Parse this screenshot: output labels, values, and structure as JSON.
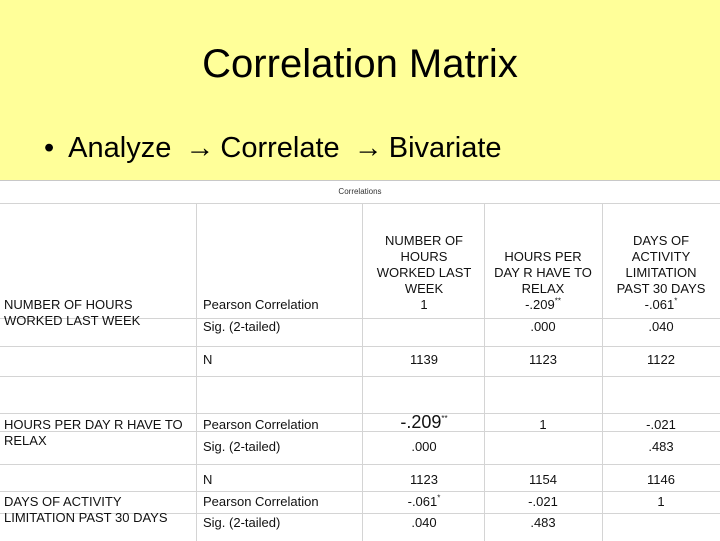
{
  "slide": {
    "title": "Correlation Matrix",
    "bullet": {
      "steps": [
        "Analyze",
        "Correlate",
        "Bivariate"
      ]
    }
  },
  "table": {
    "caption": "Correlations",
    "columns": [
      {
        "line1": "NUMBER OF",
        "line2": "HOURS",
        "line3": "WORKED LAST",
        "line4": "WEEK"
      },
      {
        "line1": "HOURS PER",
        "line2": "DAY R HAVE TO",
        "line3": "RELAX"
      },
      {
        "line1": "DAYS OF",
        "line2": "ACTIVITY",
        "line3": "LIMITATION",
        "line4": "PAST 30 DAYS"
      }
    ],
    "rows": [
      {
        "label": "NUMBER OF HOURS WORKED LAST WEEK",
        "pearson_label": "Pearson Correlation",
        "sig_label": "Sig. (2-tailed)",
        "n_label": "N",
        "pearson": [
          {
            "v": "1",
            "s": ""
          },
          {
            "v": "-.209",
            "s": "**"
          },
          {
            "v": "-.061",
            "s": "*"
          }
        ],
        "sig": [
          "",
          ".000",
          ".040"
        ],
        "n": [
          "1139",
          "1123",
          "1122"
        ]
      },
      {
        "label": "HOURS PER DAY R HAVE TO RELAX",
        "pearson_label": "Pearson Correlation",
        "sig_label": "Sig. (2-tailed)",
        "n_label": "N",
        "pearson": [
          {
            "v": "-.209",
            "s": "**"
          },
          {
            "v": "1",
            "s": ""
          },
          {
            "v": "-.021",
            "s": ""
          }
        ],
        "sig": [
          ".000",
          "",
          ".483"
        ],
        "n": [
          "1123",
          "1154",
          "1146"
        ]
      },
      {
        "label": "DAYS OF ACTIVITY LIMITATION PAST 30 DAYS",
        "pearson_label": "Pearson Correlation",
        "sig_label": "Sig. (2-tailed)",
        "pearson": [
          {
            "v": "-.061",
            "s": "*"
          },
          {
            "v": "-.021",
            "s": ""
          },
          {
            "v": "1",
            "s": ""
          }
        ],
        "sig": [
          ".040",
          ".483",
          ""
        ]
      }
    ]
  }
}
